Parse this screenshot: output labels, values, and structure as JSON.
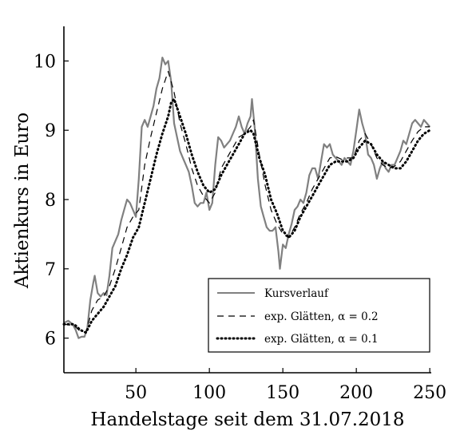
{
  "chart_data": {
    "type": "line",
    "xlabel": "Handelstage seit dem 31.07.2018",
    "ylabel": "Aktienkurs in Euro",
    "xlim": [
      1,
      251
    ],
    "ylim": [
      5.5,
      10.5
    ],
    "x_ticks": [
      50,
      100,
      150,
      200,
      250
    ],
    "x_tick_labels": [
      "50",
      "100",
      "150",
      "200",
      "250"
    ],
    "y_ticks": [
      6,
      7,
      8,
      9,
      10
    ],
    "y_tick_labels": [
      "6",
      "7",
      "8",
      "9",
      "10"
    ],
    "grid": false,
    "legend_position": "bottom-right",
    "series": [
      {
        "name": "Kursverlauf",
        "style": "solid",
        "color": "#808080",
        "points": [
          [
            1,
            6.22
          ],
          [
            4,
            6.25
          ],
          [
            7,
            6.2
          ],
          [
            9,
            6.12
          ],
          [
            11,
            6.0
          ],
          [
            13,
            6.02
          ],
          [
            15,
            6.02
          ],
          [
            17,
            6.15
          ],
          [
            19,
            6.55
          ],
          [
            21,
            6.8
          ],
          [
            22,
            6.9
          ],
          [
            24,
            6.65
          ],
          [
            26,
            6.6
          ],
          [
            28,
            6.65
          ],
          [
            30,
            6.62
          ],
          [
            32,
            6.9
          ],
          [
            34,
            7.3
          ],
          [
            36,
            7.4
          ],
          [
            38,
            7.5
          ],
          [
            40,
            7.7
          ],
          [
            42,
            7.85
          ],
          [
            44,
            8.0
          ],
          [
            46,
            7.95
          ],
          [
            48,
            7.85
          ],
          [
            50,
            7.75
          ],
          [
            52,
            8.3
          ],
          [
            54,
            9.05
          ],
          [
            56,
            9.15
          ],
          [
            58,
            9.05
          ],
          [
            60,
            9.2
          ],
          [
            62,
            9.35
          ],
          [
            64,
            9.6
          ],
          [
            66,
            9.75
          ],
          [
            68,
            10.05
          ],
          [
            70,
            9.95
          ],
          [
            72,
            10.0
          ],
          [
            74,
            9.7
          ],
          [
            76,
            9.1
          ],
          [
            78,
            8.9
          ],
          [
            80,
            8.7
          ],
          [
            82,
            8.6
          ],
          [
            84,
            8.5
          ],
          [
            86,
            8.4
          ],
          [
            88,
            8.2
          ],
          [
            90,
            7.95
          ],
          [
            92,
            7.9
          ],
          [
            94,
            7.95
          ],
          [
            96,
            7.95
          ],
          [
            98,
            8.1
          ],
          [
            100,
            7.85
          ],
          [
            102,
            7.95
          ],
          [
            104,
            8.5
          ],
          [
            106,
            8.9
          ],
          [
            108,
            8.85
          ],
          [
            110,
            8.75
          ],
          [
            112,
            8.8
          ],
          [
            114,
            8.85
          ],
          [
            116,
            8.95
          ],
          [
            118,
            9.05
          ],
          [
            120,
            9.2
          ],
          [
            122,
            9.05
          ],
          [
            124,
            8.95
          ],
          [
            126,
            9.1
          ],
          [
            128,
            9.2
          ],
          [
            129,
            9.45
          ],
          [
            131,
            9.0
          ],
          [
            133,
            8.3
          ],
          [
            135,
            7.9
          ],
          [
            137,
            7.75
          ],
          [
            139,
            7.6
          ],
          [
            141,
            7.55
          ],
          [
            143,
            7.55
          ],
          [
            145,
            7.6
          ],
          [
            147,
            7.25
          ],
          [
            148,
            7.0
          ],
          [
            150,
            7.35
          ],
          [
            152,
            7.3
          ],
          [
            154,
            7.5
          ],
          [
            156,
            7.65
          ],
          [
            158,
            7.85
          ],
          [
            160,
            7.9
          ],
          [
            162,
            8.0
          ],
          [
            164,
            7.95
          ],
          [
            166,
            8.1
          ],
          [
            168,
            8.35
          ],
          [
            170,
            8.45
          ],
          [
            172,
            8.45
          ],
          [
            174,
            8.3
          ],
          [
            176,
            8.55
          ],
          [
            178,
            8.8
          ],
          [
            180,
            8.75
          ],
          [
            182,
            8.8
          ],
          [
            184,
            8.65
          ],
          [
            186,
            8.6
          ],
          [
            188,
            8.55
          ],
          [
            190,
            8.5
          ],
          [
            192,
            8.6
          ],
          [
            194,
            8.55
          ],
          [
            196,
            8.5
          ],
          [
            198,
            8.7
          ],
          [
            200,
            9.0
          ],
          [
            202,
            9.3
          ],
          [
            204,
            9.1
          ],
          [
            206,
            8.95
          ],
          [
            208,
            8.65
          ],
          [
            210,
            8.6
          ],
          [
            212,
            8.5
          ],
          [
            214,
            8.3
          ],
          [
            216,
            8.45
          ],
          [
            218,
            8.55
          ],
          [
            220,
            8.45
          ],
          [
            222,
            8.4
          ],
          [
            224,
            8.5
          ],
          [
            226,
            8.5
          ],
          [
            228,
            8.6
          ],
          [
            230,
            8.7
          ],
          [
            232,
            8.85
          ],
          [
            234,
            8.8
          ],
          [
            236,
            8.95
          ],
          [
            238,
            9.1
          ],
          [
            240,
            9.15
          ],
          [
            242,
            9.1
          ],
          [
            244,
            9.05
          ],
          [
            246,
            9.15
          ],
          [
            248,
            9.1
          ],
          [
            250,
            9.05
          ]
        ]
      },
      {
        "name": "exp. Glätten, α = 0.2",
        "style": "dashed",
        "color": "#000000",
        "points": [
          [
            1,
            6.2
          ],
          [
            8,
            6.18
          ],
          [
            12,
            6.1
          ],
          [
            16,
            6.08
          ],
          [
            20,
            6.4
          ],
          [
            24,
            6.55
          ],
          [
            28,
            6.6
          ],
          [
            32,
            6.75
          ],
          [
            36,
            7.0
          ],
          [
            40,
            7.3
          ],
          [
            44,
            7.6
          ],
          [
            48,
            7.75
          ],
          [
            52,
            7.85
          ],
          [
            56,
            8.5
          ],
          [
            60,
            8.9
          ],
          [
            64,
            9.25
          ],
          [
            68,
            9.6
          ],
          [
            72,
            9.85
          ],
          [
            76,
            9.55
          ],
          [
            80,
            9.1
          ],
          [
            84,
            8.8
          ],
          [
            88,
            8.45
          ],
          [
            92,
            8.2
          ],
          [
            96,
            8.05
          ],
          [
            100,
            7.95
          ],
          [
            104,
            8.1
          ],
          [
            108,
            8.45
          ],
          [
            112,
            8.6
          ],
          [
            116,
            8.75
          ],
          [
            120,
            8.9
          ],
          [
            124,
            8.95
          ],
          [
            128,
            9.05
          ],
          [
            130,
            9.15
          ],
          [
            134,
            8.65
          ],
          [
            138,
            8.2
          ],
          [
            142,
            7.85
          ],
          [
            146,
            7.65
          ],
          [
            150,
            7.5
          ],
          [
            154,
            7.45
          ],
          [
            158,
            7.6
          ],
          [
            162,
            7.8
          ],
          [
            166,
            7.95
          ],
          [
            170,
            8.15
          ],
          [
            174,
            8.3
          ],
          [
            178,
            8.45
          ],
          [
            182,
            8.6
          ],
          [
            186,
            8.62
          ],
          [
            190,
            8.58
          ],
          [
            194,
            8.6
          ],
          [
            198,
            8.6
          ],
          [
            202,
            8.85
          ],
          [
            206,
            8.95
          ],
          [
            210,
            8.8
          ],
          [
            214,
            8.6
          ],
          [
            218,
            8.5
          ],
          [
            222,
            8.45
          ],
          [
            226,
            8.48
          ],
          [
            230,
            8.55
          ],
          [
            234,
            8.7
          ],
          [
            238,
            8.85
          ],
          [
            242,
            8.98
          ],
          [
            246,
            9.05
          ],
          [
            250,
            9.05
          ]
        ]
      },
      {
        "name": "exp. Glätten, α = 0.1",
        "style": "dotted",
        "color": "#000000",
        "points": [
          [
            1,
            6.2
          ],
          [
            8,
            6.2
          ],
          [
            12,
            6.12
          ],
          [
            16,
            6.08
          ],
          [
            20,
            6.25
          ],
          [
            24,
            6.35
          ],
          [
            28,
            6.45
          ],
          [
            32,
            6.6
          ],
          [
            36,
            6.75
          ],
          [
            40,
            7.0
          ],
          [
            44,
            7.2
          ],
          [
            48,
            7.45
          ],
          [
            52,
            7.6
          ],
          [
            56,
            7.95
          ],
          [
            60,
            8.3
          ],
          [
            64,
            8.65
          ],
          [
            68,
            8.95
          ],
          [
            72,
            9.2
          ],
          [
            74,
            9.4
          ],
          [
            76,
            9.45
          ],
          [
            80,
            9.2
          ],
          [
            84,
            8.95
          ],
          [
            88,
            8.65
          ],
          [
            92,
            8.4
          ],
          [
            96,
            8.2
          ],
          [
            100,
            8.1
          ],
          [
            104,
            8.15
          ],
          [
            108,
            8.35
          ],
          [
            112,
            8.5
          ],
          [
            116,
            8.65
          ],
          [
            120,
            8.8
          ],
          [
            124,
            8.95
          ],
          [
            128,
            9.0
          ],
          [
            130,
            8.95
          ],
          [
            134,
            8.6
          ],
          [
            138,
            8.35
          ],
          [
            142,
            8.0
          ],
          [
            146,
            7.8
          ],
          [
            150,
            7.55
          ],
          [
            154,
            7.45
          ],
          [
            158,
            7.55
          ],
          [
            162,
            7.75
          ],
          [
            166,
            7.9
          ],
          [
            170,
            8.05
          ],
          [
            174,
            8.2
          ],
          [
            178,
            8.35
          ],
          [
            182,
            8.5
          ],
          [
            186,
            8.55
          ],
          [
            190,
            8.55
          ],
          [
            194,
            8.55
          ],
          [
            198,
            8.6
          ],
          [
            202,
            8.75
          ],
          [
            206,
            8.85
          ],
          [
            210,
            8.8
          ],
          [
            214,
            8.65
          ],
          [
            218,
            8.55
          ],
          [
            222,
            8.5
          ],
          [
            226,
            8.45
          ],
          [
            230,
            8.45
          ],
          [
            234,
            8.55
          ],
          [
            238,
            8.7
          ],
          [
            242,
            8.85
          ],
          [
            246,
            8.95
          ],
          [
            250,
            9.0
          ]
        ]
      }
    ]
  }
}
